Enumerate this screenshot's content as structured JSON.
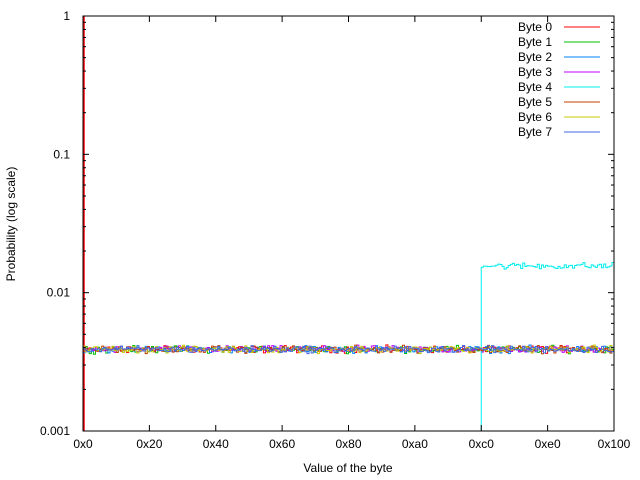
{
  "chart_data": {
    "type": "line",
    "xlabel": "Value of the byte",
    "ylabel": "Probability (log scale)",
    "y_scale": "log",
    "xlim": [
      0,
      256
    ],
    "ylim": [
      0.001,
      1
    ],
    "x_tick_labels": [
      "0x0",
      "0x20",
      "0x40",
      "0x60",
      "0x80",
      "0xa0",
      "0xc0",
      "0xe0",
      "0x100"
    ],
    "x_tick_values": [
      0,
      32,
      64,
      96,
      128,
      160,
      192,
      224,
      256
    ],
    "y_tick_labels": [
      "0.001",
      "0.01",
      "0.1",
      "1"
    ],
    "y_tick_values": [
      0.001,
      0.01,
      0.1,
      1
    ],
    "grid": false,
    "legend_position": "top-right",
    "series": [
      {
        "name": "Byte 0",
        "color": "#ff0000",
        "pattern": "uniform ~0.0039 per byte value 0x0-0xff, with a spike to 1.0 at 0x0",
        "mean": 0.0039,
        "spike_x": 0,
        "spike_value": 1.0
      },
      {
        "name": "Byte 1",
        "color": "#00c000",
        "pattern": "uniform",
        "mean": 0.0039
      },
      {
        "name": "Byte 2",
        "color": "#0080ff",
        "pattern": "uniform",
        "mean": 0.0039
      },
      {
        "name": "Byte 3",
        "color": "#c000ff",
        "pattern": "uniform",
        "mean": 0.0039
      },
      {
        "name": "Byte 4",
        "color": "#00eeee",
        "pattern": "zero below 0xc0, ~0.0156 for 0xc0-0xff",
        "start_x": 192,
        "mean": 0.0156
      },
      {
        "name": "Byte 5",
        "color": "#c04000",
        "pattern": "uniform",
        "mean": 0.0039
      },
      {
        "name": "Byte 6",
        "color": "#c8c800",
        "pattern": "uniform",
        "mean": 0.0039
      },
      {
        "name": "Byte 7",
        "color": "#4169e1",
        "pattern": "uniform",
        "mean": 0.0039
      }
    ]
  }
}
